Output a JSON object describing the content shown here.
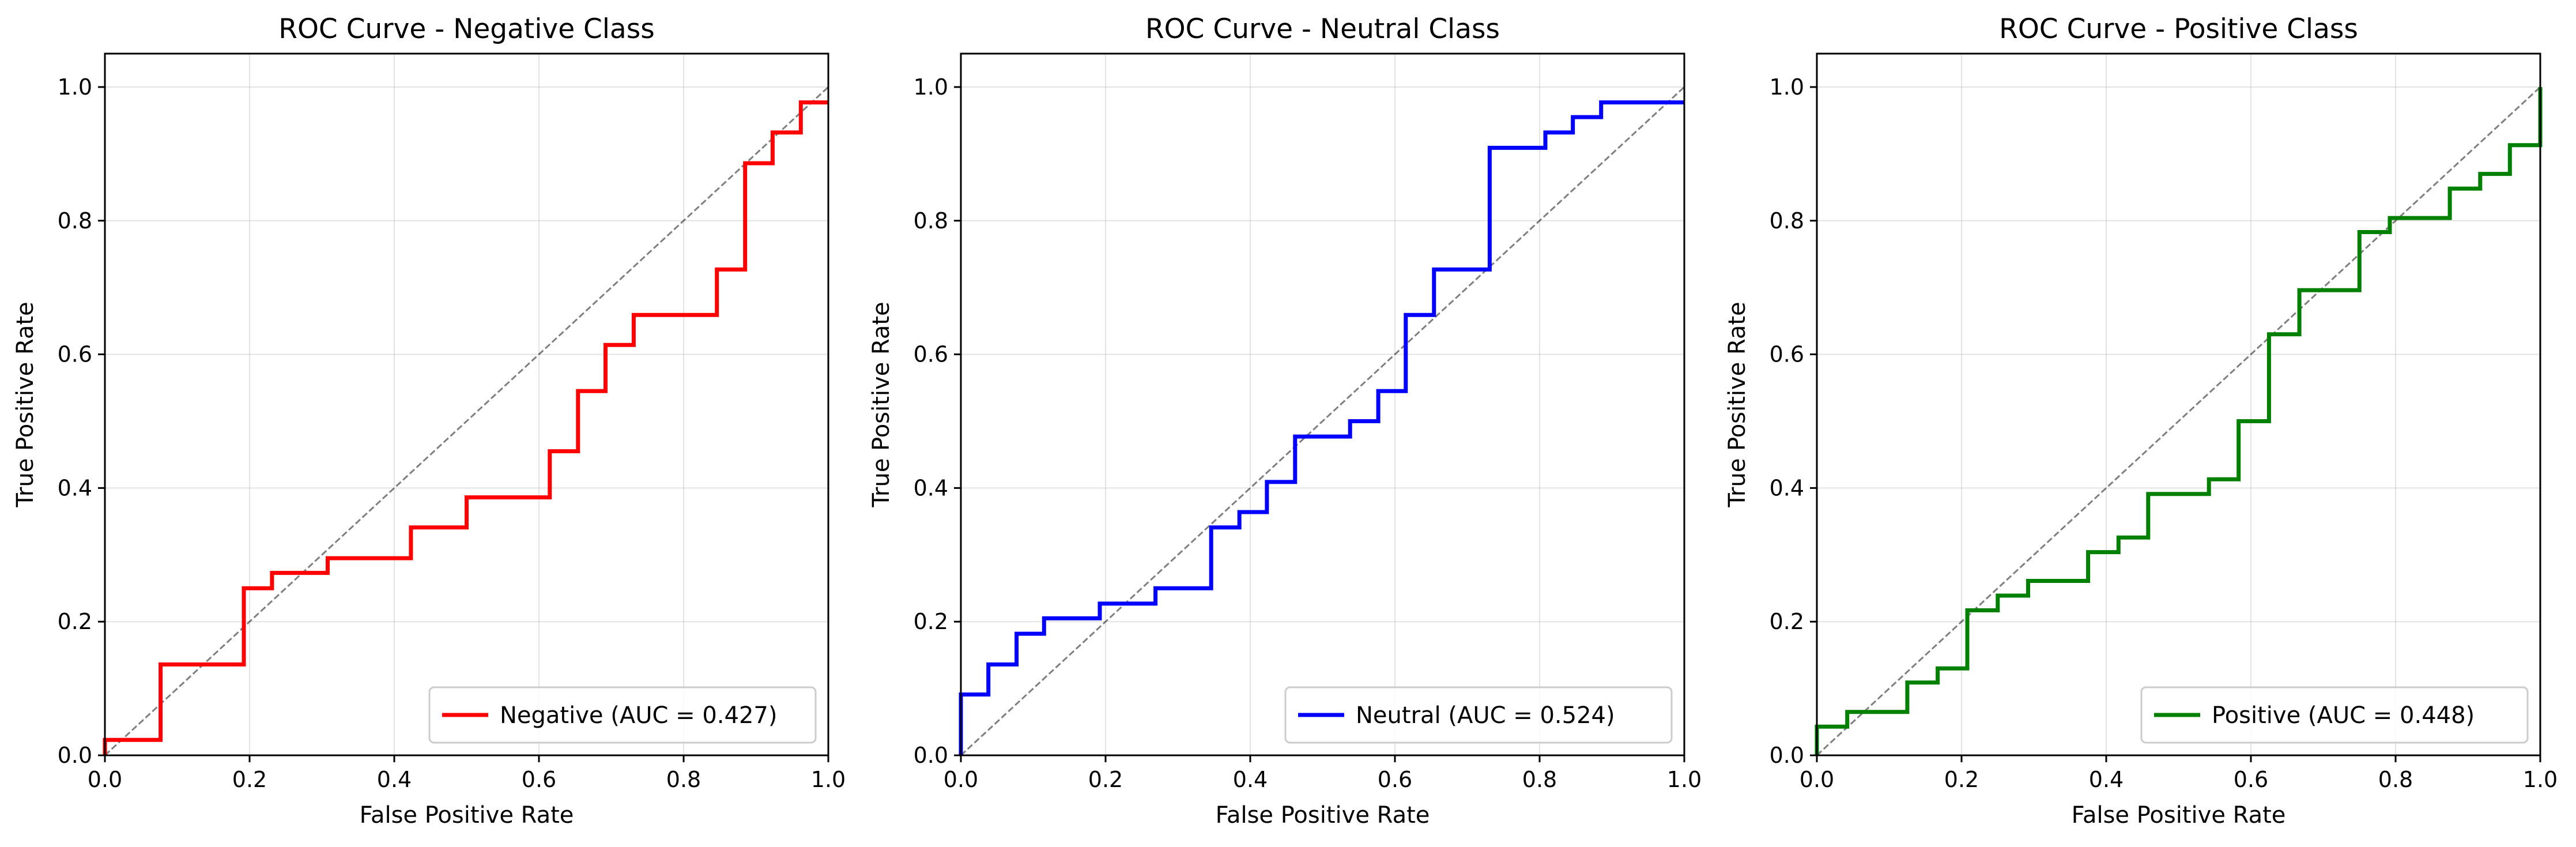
{
  "chart_data": [
    {
      "type": "line",
      "title": "ROC Curve - Negative Class",
      "xlabel": "False Positive Rate",
      "ylabel": "True Positive Rate",
      "xlim": [
        0.0,
        1.0
      ],
      "ylim": [
        0.0,
        1.05
      ],
      "xticks": [
        "0.0",
        "0.2",
        "0.4",
        "0.6",
        "0.8",
        "1.0"
      ],
      "yticks": [
        "0.0",
        "0.2",
        "0.4",
        "0.6",
        "0.8",
        "1.0"
      ],
      "grid": true,
      "legend_position": "lower-right",
      "diagonal_reference": true,
      "series": [
        {
          "name": "Negative (AUC = 0.427)",
          "color": "#ff0000",
          "x": [
            0.0,
            0.0,
            0.077,
            0.077,
            0.192,
            0.192,
            0.231,
            0.231,
            0.308,
            0.308,
            0.423,
            0.423,
            0.5,
            0.5,
            0.615,
            0.615,
            0.654,
            0.654,
            0.692,
            0.692,
            0.731,
            0.731,
            0.846,
            0.846,
            0.885,
            0.885,
            0.923,
            0.923,
            0.962,
            0.962,
            1.0
          ],
          "y": [
            0.0,
            0.023,
            0.023,
            0.136,
            0.136,
            0.25,
            0.25,
            0.273,
            0.273,
            0.295,
            0.295,
            0.341,
            0.341,
            0.386,
            0.386,
            0.455,
            0.455,
            0.545,
            0.545,
            0.614,
            0.614,
            0.659,
            0.659,
            0.727,
            0.727,
            0.886,
            0.886,
            0.932,
            0.932,
            0.977,
            0.977
          ]
        }
      ]
    },
    {
      "type": "line",
      "title": "ROC Curve - Neutral Class",
      "xlabel": "False Positive Rate",
      "ylabel": "True Positive Rate",
      "xlim": [
        0.0,
        1.0
      ],
      "ylim": [
        0.0,
        1.05
      ],
      "xticks": [
        "0.0",
        "0.2",
        "0.4",
        "0.6",
        "0.8",
        "1.0"
      ],
      "yticks": [
        "0.0",
        "0.2",
        "0.4",
        "0.6",
        "0.8",
        "1.0"
      ],
      "grid": true,
      "legend_position": "lower-right",
      "diagonal_reference": true,
      "series": [
        {
          "name": "Neutral (AUC = 0.524)",
          "color": "#0000ff",
          "x": [
            0.0,
            0.0,
            0.038,
            0.038,
            0.077,
            0.077,
            0.115,
            0.115,
            0.192,
            0.192,
            0.269,
            0.269,
            0.346,
            0.346,
            0.385,
            0.385,
            0.423,
            0.423,
            0.462,
            0.462,
            0.538,
            0.538,
            0.577,
            0.577,
            0.615,
            0.615,
            0.654,
            0.654,
            0.731,
            0.731,
            0.808,
            0.808,
            0.846,
            0.846,
            0.885,
            0.885,
            1.0
          ],
          "y": [
            0.0,
            0.091,
            0.091,
            0.136,
            0.136,
            0.182,
            0.182,
            0.205,
            0.205,
            0.227,
            0.227,
            0.25,
            0.25,
            0.341,
            0.341,
            0.364,
            0.364,
            0.409,
            0.409,
            0.477,
            0.477,
            0.5,
            0.5,
            0.545,
            0.545,
            0.659,
            0.659,
            0.727,
            0.727,
            0.909,
            0.909,
            0.932,
            0.932,
            0.955,
            0.955,
            0.977,
            0.977
          ]
        }
      ]
    },
    {
      "type": "line",
      "title": "ROC Curve - Positive Class",
      "xlabel": "False Positive Rate",
      "ylabel": "True Positive Rate",
      "xlim": [
        0.0,
        1.0
      ],
      "ylim": [
        0.0,
        1.05
      ],
      "xticks": [
        "0.0",
        "0.2",
        "0.4",
        "0.6",
        "0.8",
        "1.0"
      ],
      "yticks": [
        "0.0",
        "0.2",
        "0.4",
        "0.6",
        "0.8",
        "1.0"
      ],
      "grid": true,
      "legend_position": "lower-right",
      "diagonal_reference": true,
      "series": [
        {
          "name": "Positive (AUC = 0.448)",
          "color": "#008000",
          "x": [
            0.0,
            0.0,
            0.042,
            0.042,
            0.125,
            0.125,
            0.167,
            0.167,
            0.208,
            0.208,
            0.25,
            0.25,
            0.292,
            0.292,
            0.375,
            0.375,
            0.417,
            0.417,
            0.458,
            0.458,
            0.542,
            0.542,
            0.583,
            0.583,
            0.625,
            0.625,
            0.667,
            0.667,
            0.75,
            0.75,
            0.792,
            0.792,
            0.875,
            0.875,
            0.917,
            0.917,
            0.958,
            0.958,
            1.0,
            1.0
          ],
          "y": [
            0.0,
            0.043,
            0.043,
            0.065,
            0.065,
            0.109,
            0.109,
            0.13,
            0.13,
            0.217,
            0.217,
            0.239,
            0.239,
            0.261,
            0.261,
            0.304,
            0.304,
            0.326,
            0.326,
            0.391,
            0.391,
            0.413,
            0.413,
            0.5,
            0.5,
            0.63,
            0.63,
            0.696,
            0.696,
            0.783,
            0.783,
            0.804,
            0.804,
            0.848,
            0.848,
            0.87,
            0.87,
            0.913,
            0.913,
            1.0
          ]
        }
      ]
    }
  ]
}
